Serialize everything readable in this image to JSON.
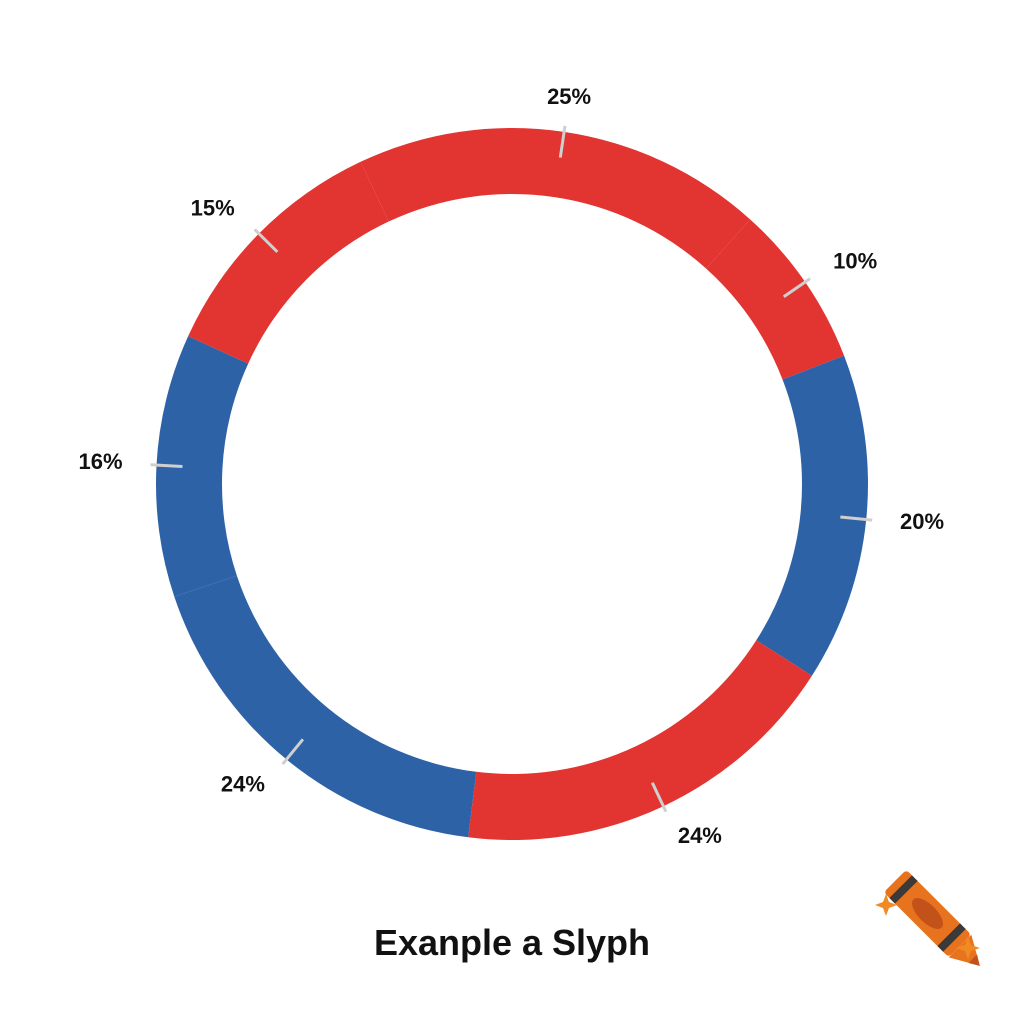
{
  "colors": {
    "red": "#e23431",
    "blue": "#2d62a7",
    "leader": "#cfcfcf",
    "label": "#111111",
    "crayon_orange": "#e8731e",
    "crayon_dark": "#c3521a",
    "crayon_band": "#3a3a3a",
    "sparkle": "#f08a24"
  },
  "caption": "Exanple a Slyph",
  "corner_mark_icon": "crayon-icon",
  "chart_data": {
    "type": "donut",
    "title": "",
    "legend": "none",
    "slices": [
      {
        "label": "10%",
        "value": 10,
        "color": "red"
      },
      {
        "label": "20%",
        "value": 20,
        "color": "blue"
      },
      {
        "label": "24%",
        "value": 24,
        "color": "red"
      },
      {
        "label": "24%",
        "value": 24,
        "color": "blue"
      },
      {
        "label": "16%",
        "value": 16,
        "color": "blue"
      },
      {
        "label": "15%",
        "value": 15,
        "color": "red"
      },
      {
        "label": "25%",
        "value": 25,
        "color": "red"
      }
    ]
  }
}
